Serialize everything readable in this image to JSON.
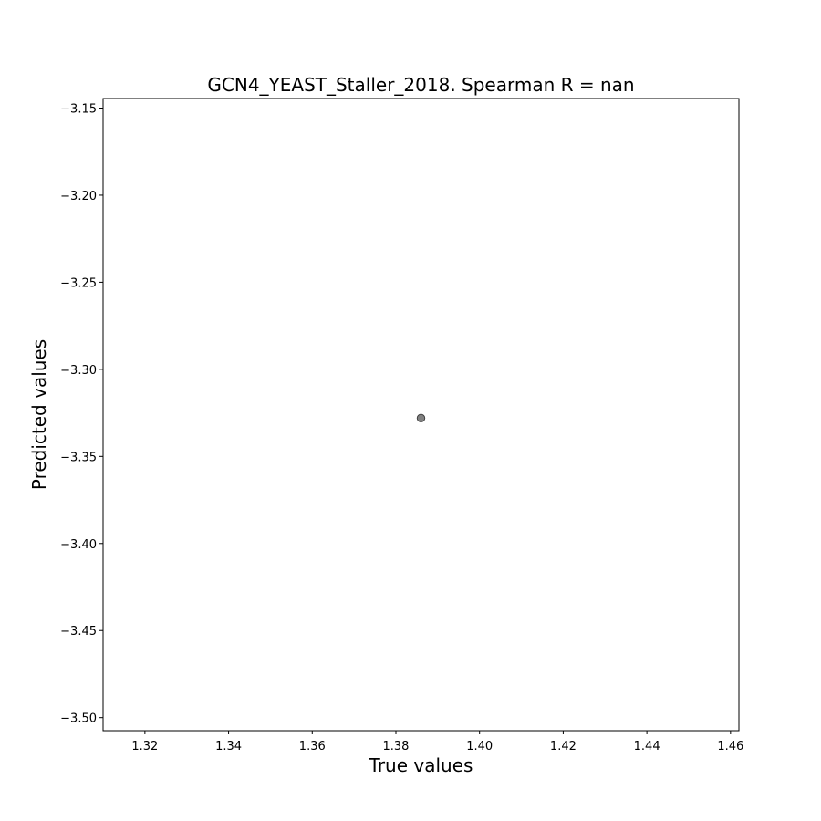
{
  "chart_data": {
    "type": "scatter",
    "title": "GCN4_YEAST_Staller_2018. Spearman R = nan",
    "xlabel": "True values",
    "ylabel": "Predicted values",
    "xlim": [
      1.31,
      1.462
    ],
    "ylim": [
      -3.5075,
      -3.1445
    ],
    "xticks": [
      1.32,
      1.34,
      1.36,
      1.38,
      1.4,
      1.42,
      1.44,
      1.46
    ],
    "xtick_labels": [
      "1.32",
      "1.34",
      "1.36",
      "1.38",
      "1.40",
      "1.42",
      "1.44",
      "1.46"
    ],
    "yticks": [
      -3.15,
      -3.2,
      -3.25,
      -3.3,
      -3.35,
      -3.4,
      -3.45,
      -3.5
    ],
    "ytick_labels": [
      "−3.15",
      "−3.20",
      "−3.25",
      "−3.30",
      "−3.35",
      "−3.40",
      "−3.45",
      "−3.50"
    ],
    "points": [
      {
        "x": 1.386,
        "y": -3.328
      }
    ],
    "grid": false,
    "colors": {
      "marker_fill": "#808080",
      "marker_stroke": "#404040",
      "axes": "#000000"
    }
  }
}
